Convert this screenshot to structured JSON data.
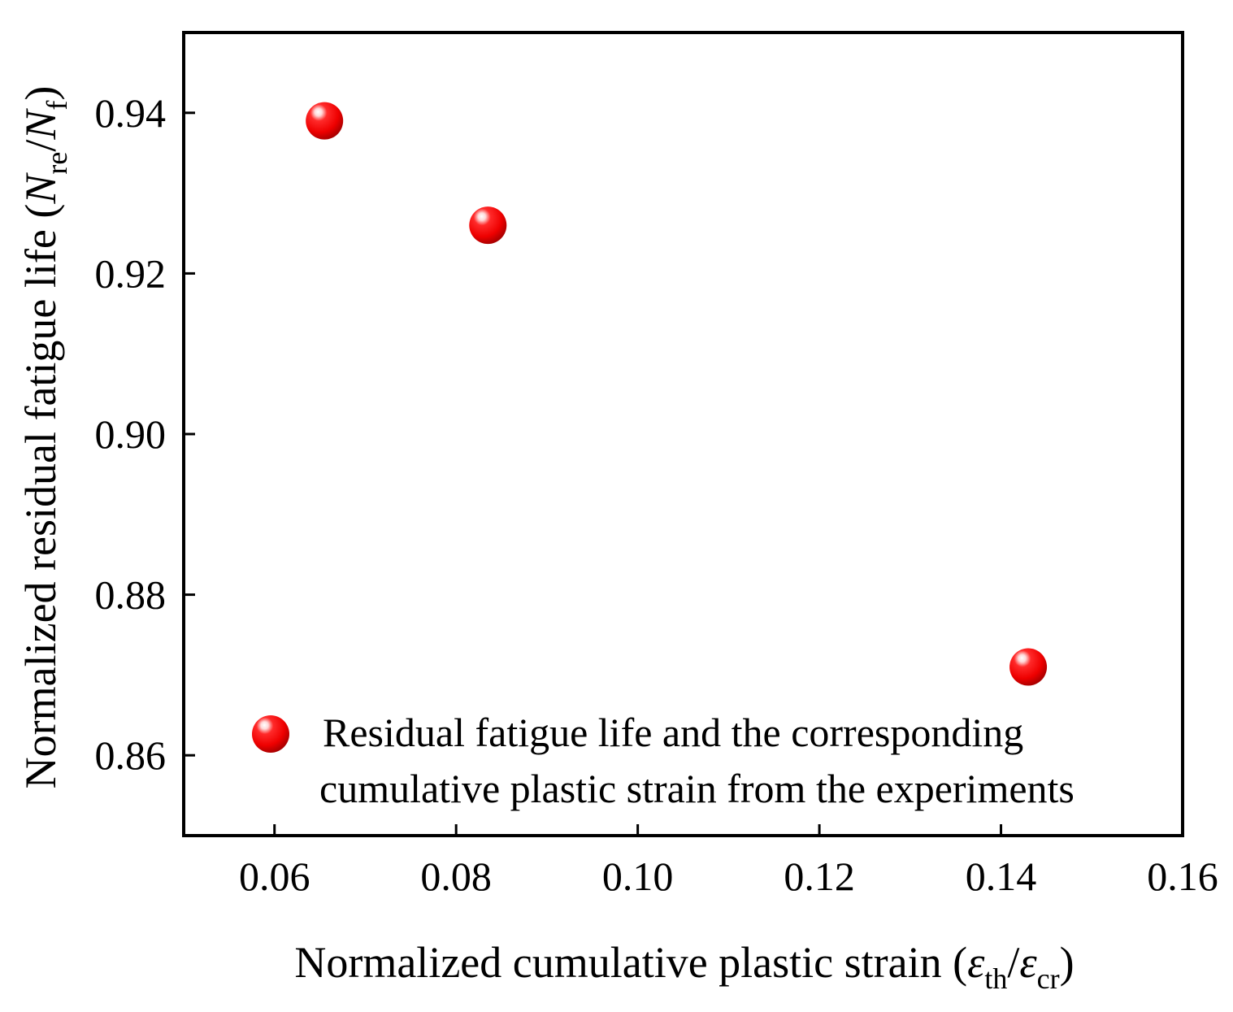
{
  "chart_data": {
    "type": "scatter",
    "title": "",
    "xlabel": {
      "main": "Normalized cumulative plastic strain (",
      "num_symbol": "ε",
      "num_sub": "th",
      "slash": "/",
      "den_symbol": "ε",
      "den_sub": "cr",
      "close": ")"
    },
    "ylabel": {
      "main": "Normalized residual fatigue life (",
      "num_symbol": "N",
      "num_sub": "re",
      "slash": "/",
      "den_symbol": "N",
      "den_sub": "f",
      "close": ")"
    },
    "xlim": [
      0.05,
      0.16
    ],
    "ylim": [
      0.85,
      0.95
    ],
    "xticks": [
      0.06,
      0.08,
      0.1,
      0.12,
      0.14,
      0.16
    ],
    "xtick_labels": [
      "0.06",
      "0.08",
      "0.10",
      "0.12",
      "0.14",
      "0.16"
    ],
    "yticks": [
      0.86,
      0.88,
      0.9,
      0.92,
      0.94
    ],
    "ytick_labels": [
      "0.86",
      "0.88",
      "0.90",
      "0.92",
      "0.94"
    ],
    "grid": false,
    "legend_position": "bottom-right",
    "series": [
      {
        "name_lines": [
          "Residual fatigue life and the corresponding",
          "cumulative plastic strain from the experiments"
        ],
        "color": "#ff0000",
        "marker": "sphere",
        "x": [
          0.0655,
          0.0835,
          0.143
        ],
        "y": [
          0.939,
          0.926,
          0.871
        ]
      }
    ]
  }
}
